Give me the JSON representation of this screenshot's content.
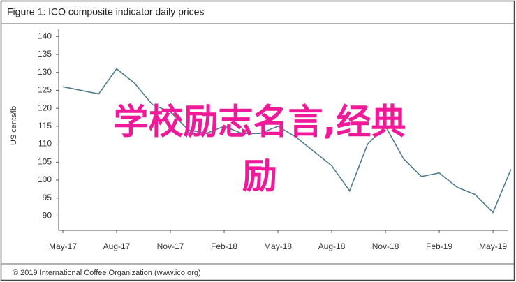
{
  "chart_data": {
    "type": "line",
    "title": "Figure 1: ICO composite indicator daily prices",
    "y_label": "US cents/lb",
    "source": "© 2019 International Coffee Organization (www.ico.org)",
    "overlay": [
      "学校励志名言,经典",
      "励"
    ],
    "categories": [
      "May-17",
      null,
      null,
      "Aug-17",
      null,
      null,
      "Nov-17",
      null,
      null,
      "Feb-18",
      null,
      null,
      "May-18",
      null,
      null,
      "Aug-18",
      null,
      null,
      "Nov-18",
      null,
      null,
      "Feb-19",
      null,
      null,
      "May-19",
      null
    ],
    "series": [
      {
        "name": "ICO composite indicator",
        "color": "#4f7d8f",
        "values": [
          126,
          125,
          124,
          131,
          127,
          121,
          119,
          114,
          113,
          115,
          113,
          113,
          115,
          112,
          108,
          104,
          97,
          110,
          115,
          106,
          101,
          102,
          98,
          96,
          91,
          103
        ]
      }
    ],
    "ylim": [
      86,
      142
    ],
    "yticks": [
      90,
      95,
      100,
      105,
      110,
      115,
      120,
      125,
      130,
      135,
      140
    ]
  }
}
